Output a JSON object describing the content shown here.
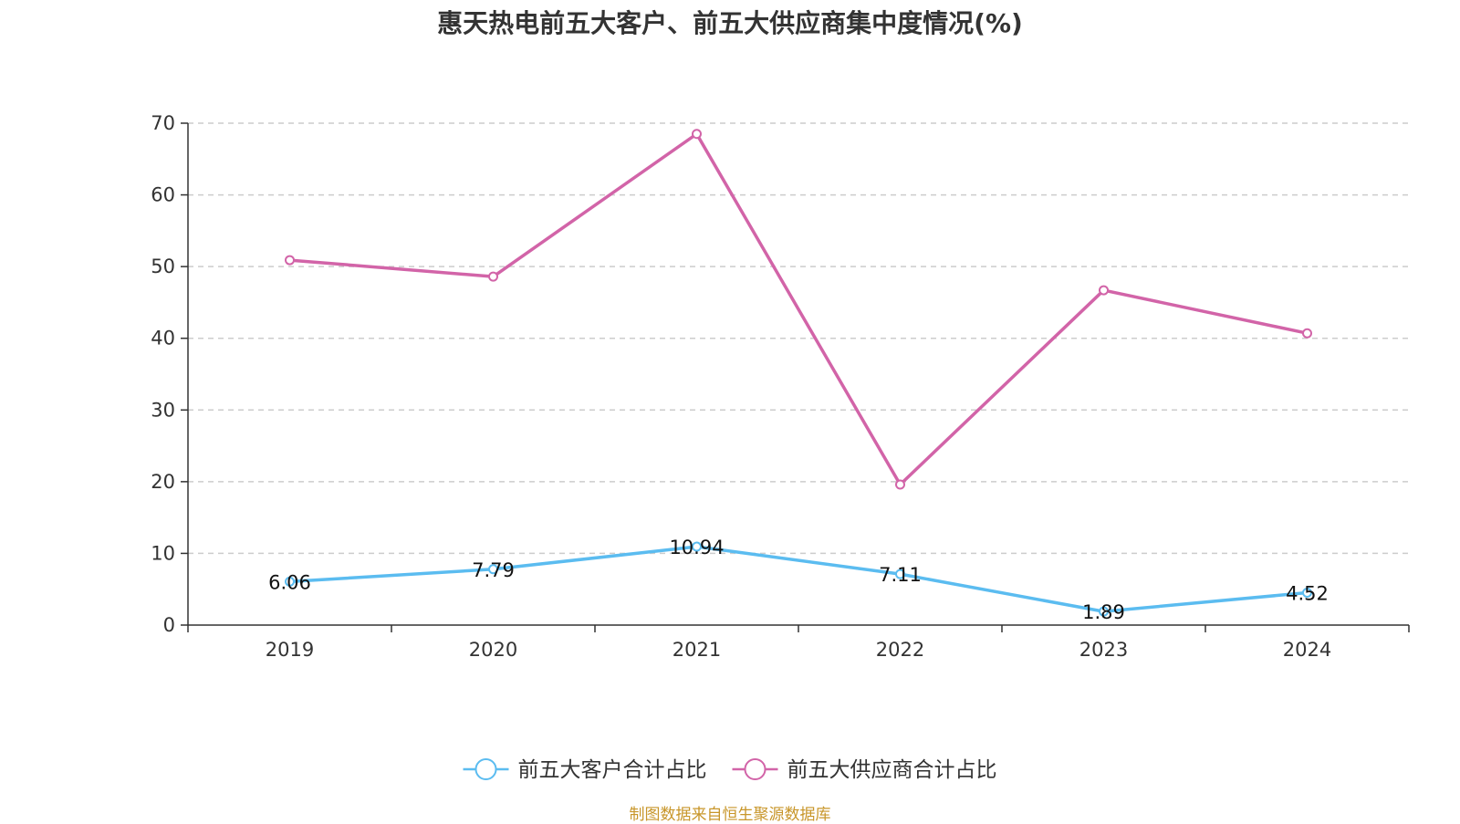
{
  "chart_data": {
    "type": "line",
    "title": "惠天热电前五大客户、前五大供应商集中度情况(%)",
    "xlabel": "",
    "ylabel": "",
    "categories": [
      "2019",
      "2020",
      "2021",
      "2022",
      "2023",
      "2024"
    ],
    "ylim": [
      0,
      70
    ],
    "yticks": [
      0,
      10,
      20,
      30,
      40,
      50,
      60,
      70
    ],
    "grid": true,
    "legend_position": "bottom",
    "series": [
      {
        "name": "前五大客户合计占比",
        "color": "#5bbcf0",
        "values": [
          6.06,
          7.79,
          10.94,
          7.11,
          1.89,
          4.52
        ],
        "data_labels": [
          "6.06",
          "7.79",
          "10.94",
          "7.11",
          "1.89",
          "4.52"
        ]
      },
      {
        "name": "前五大供应商合计占比",
        "color": "#d264a8",
        "values": [
          50.9,
          48.6,
          68.5,
          19.6,
          46.7,
          40.7
        ]
      }
    ]
  },
  "source": "制图数据来自恒生聚源数据库"
}
